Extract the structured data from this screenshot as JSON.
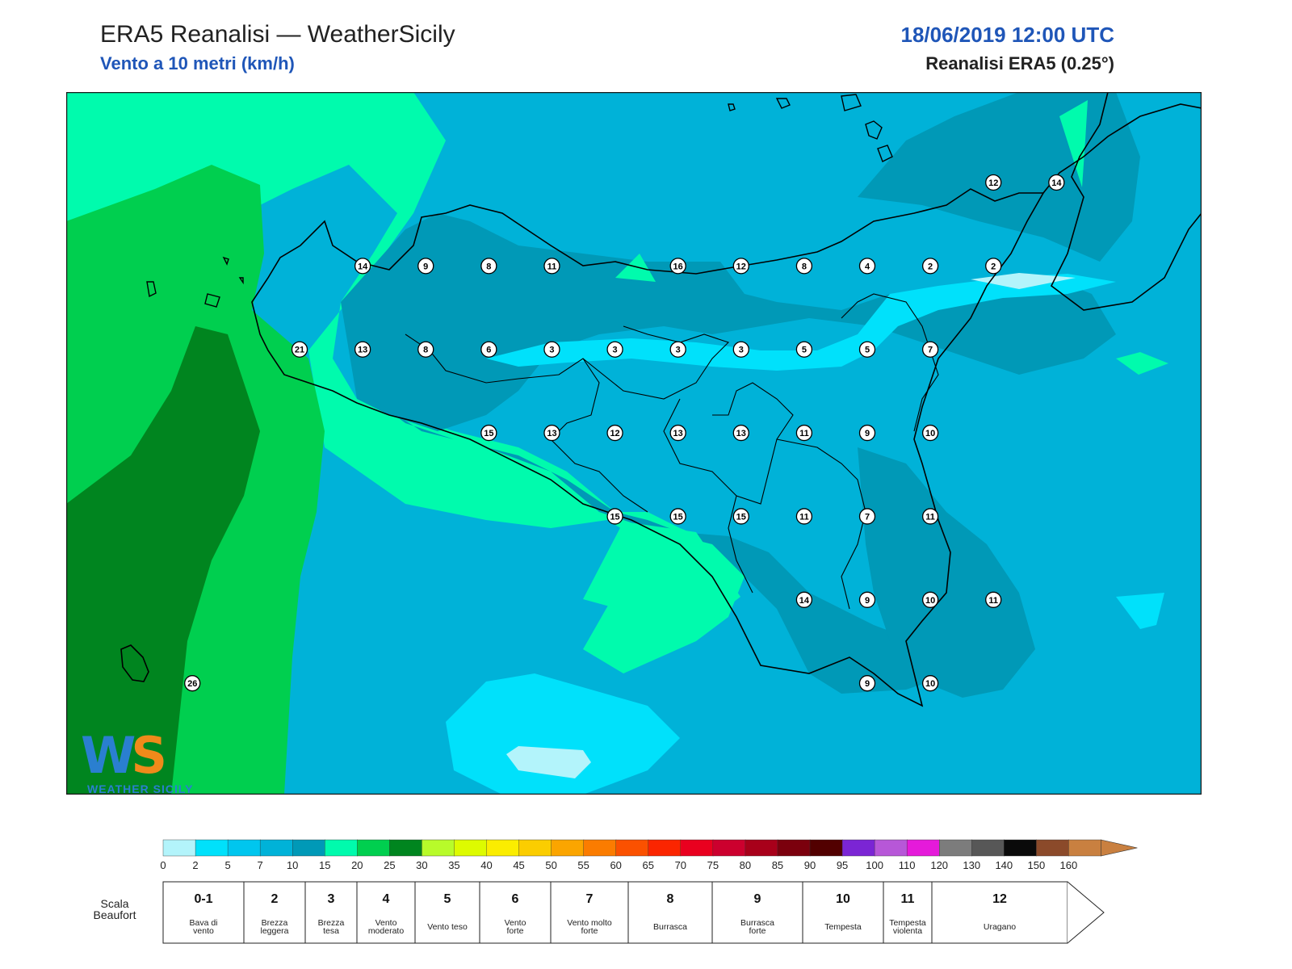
{
  "header": {
    "title": "ERA5 Reanalisi — WeatherSicily",
    "subtitle": "Vento a 10 metri (km/h)",
    "datetime": "18/06/2019 12:00 UTC",
    "model": "Reanalisi ERA5 (0.25°)"
  },
  "logo": {
    "mark": "WS",
    "name": "WEATHER SICILY"
  },
  "colorbar": {
    "ticks": [
      "0",
      "2",
      "5",
      "7",
      "10",
      "15",
      "20",
      "25",
      "30",
      "35",
      "40",
      "45",
      "50",
      "55",
      "60",
      "65",
      "70",
      "75",
      "80",
      "85",
      "90",
      "95",
      "100",
      "110",
      "120",
      "130",
      "140",
      "150",
      "160"
    ],
    "colors": [
      "#b3f4fb",
      "#00e1fb",
      "#00c6ee",
      "#00b2d8",
      "#0099b7",
      "#00fbad",
      "#00cf4f",
      "#00851f",
      "#b8fb2a",
      "#ddfb00",
      "#fbed00",
      "#fbcd00",
      "#fba500",
      "#fb7c00",
      "#fb5100",
      "#fb2500",
      "#e9001f",
      "#cc002e",
      "#a8001a",
      "#7b000d",
      "#520000",
      "#7b25d4",
      "#b757d8",
      "#e51ada",
      "#7c7c7c",
      "#575757",
      "#0a0a0a",
      "#8b4a2a",
      "#c98040"
    ],
    "arrow_color": "#c98040"
  },
  "beaufort": {
    "label": "Scala\nBeaufort",
    "levels": [
      {
        "num": "0-1",
        "name": "Bava di\nvento"
      },
      {
        "num": "2",
        "name": "Brezza\nleggera"
      },
      {
        "num": "3",
        "name": "Brezza\ntesa"
      },
      {
        "num": "4",
        "name": "Vento\nmoderato"
      },
      {
        "num": "5",
        "name": "Vento teso"
      },
      {
        "num": "6",
        "name": "Vento\nforte"
      },
      {
        "num": "7",
        "name": "Vento molto\nforte"
      },
      {
        "num": "8",
        "name": "Burrasca"
      },
      {
        "num": "9",
        "name": "Burrasca\nforte"
      },
      {
        "num": "10",
        "name": "Tempesta"
      },
      {
        "num": "11",
        "name": "Tempesta\nviolenta"
      },
      {
        "num": "12",
        "name": "Uragano"
      }
    ]
  },
  "map": {
    "colors": {
      "frame": "#1a1a1a",
      "coast": "#000000",
      "station_fill": "#ffffff"
    },
    "stations": [
      {
        "lon": 12.35,
        "lat": 38.4,
        "value": "14"
      },
      {
        "lon": 12.85,
        "lat": 38.4,
        "value": "9"
      },
      {
        "lon": 13.35,
        "lat": 38.4,
        "value": "8"
      },
      {
        "lon": 13.85,
        "lat": 38.4,
        "value": "11"
      },
      {
        "lon": 14.85,
        "lat": 38.4,
        "value": "16"
      },
      {
        "lon": 15.35,
        "lat": 38.4,
        "value": "12"
      },
      {
        "lon": 15.85,
        "lat": 38.4,
        "value": "8"
      },
      {
        "lon": 16.35,
        "lat": 38.4,
        "value": "4"
      },
      {
        "lon": 16.85,
        "lat": 38.4,
        "value": "2"
      },
      {
        "lon": 17.35,
        "lat": 38.4,
        "value": "2"
      },
      {
        "lon": 17.35,
        "lat": 39.0,
        "value": "12"
      },
      {
        "lon": 17.85,
        "lat": 39.0,
        "value": "14"
      },
      {
        "lon": 11.85,
        "lat": 37.8,
        "value": "21"
      },
      {
        "lon": 12.35,
        "lat": 37.8,
        "value": "13"
      },
      {
        "lon": 12.85,
        "lat": 37.8,
        "value": "8"
      },
      {
        "lon": 13.35,
        "lat": 37.8,
        "value": "6"
      },
      {
        "lon": 13.85,
        "lat": 37.8,
        "value": "3"
      },
      {
        "lon": 14.35,
        "lat": 37.8,
        "value": "3"
      },
      {
        "lon": 14.85,
        "lat": 37.8,
        "value": "3"
      },
      {
        "lon": 15.35,
        "lat": 37.8,
        "value": "3"
      },
      {
        "lon": 15.85,
        "lat": 37.8,
        "value": "5"
      },
      {
        "lon": 16.35,
        "lat": 37.8,
        "value": "5"
      },
      {
        "lon": 16.85,
        "lat": 37.8,
        "value": "7"
      },
      {
        "lon": 13.35,
        "lat": 37.2,
        "value": "15"
      },
      {
        "lon": 13.85,
        "lat": 37.2,
        "value": "13"
      },
      {
        "lon": 14.35,
        "lat": 37.2,
        "value": "12"
      },
      {
        "lon": 14.85,
        "lat": 37.2,
        "value": "13"
      },
      {
        "lon": 15.35,
        "lat": 37.2,
        "value": "13"
      },
      {
        "lon": 15.85,
        "lat": 37.2,
        "value": "11"
      },
      {
        "lon": 16.35,
        "lat": 37.2,
        "value": "9"
      },
      {
        "lon": 16.85,
        "lat": 37.2,
        "value": "10"
      },
      {
        "lon": 14.35,
        "lat": 36.6,
        "value": "15"
      },
      {
        "lon": 14.85,
        "lat": 36.6,
        "value": "15"
      },
      {
        "lon": 15.35,
        "lat": 36.6,
        "value": "15"
      },
      {
        "lon": 15.85,
        "lat": 36.6,
        "value": "11"
      },
      {
        "lon": 16.35,
        "lat": 36.6,
        "value": "7"
      },
      {
        "lon": 16.85,
        "lat": 36.6,
        "value": "11"
      },
      {
        "lon": 15.85,
        "lat": 36.0,
        "value": "14"
      },
      {
        "lon": 16.35,
        "lat": 36.0,
        "value": "9"
      },
      {
        "lon": 16.85,
        "lat": 36.0,
        "value": "10"
      },
      {
        "lon": 17.35,
        "lat": 36.0,
        "value": "11"
      },
      {
        "lon": 16.35,
        "lat": 35.4,
        "value": "9"
      },
      {
        "lon": 16.85,
        "lat": 35.4,
        "value": "10"
      },
      {
        "lon": 11.0,
        "lat": 35.4,
        "value": "26"
      }
    ]
  }
}
